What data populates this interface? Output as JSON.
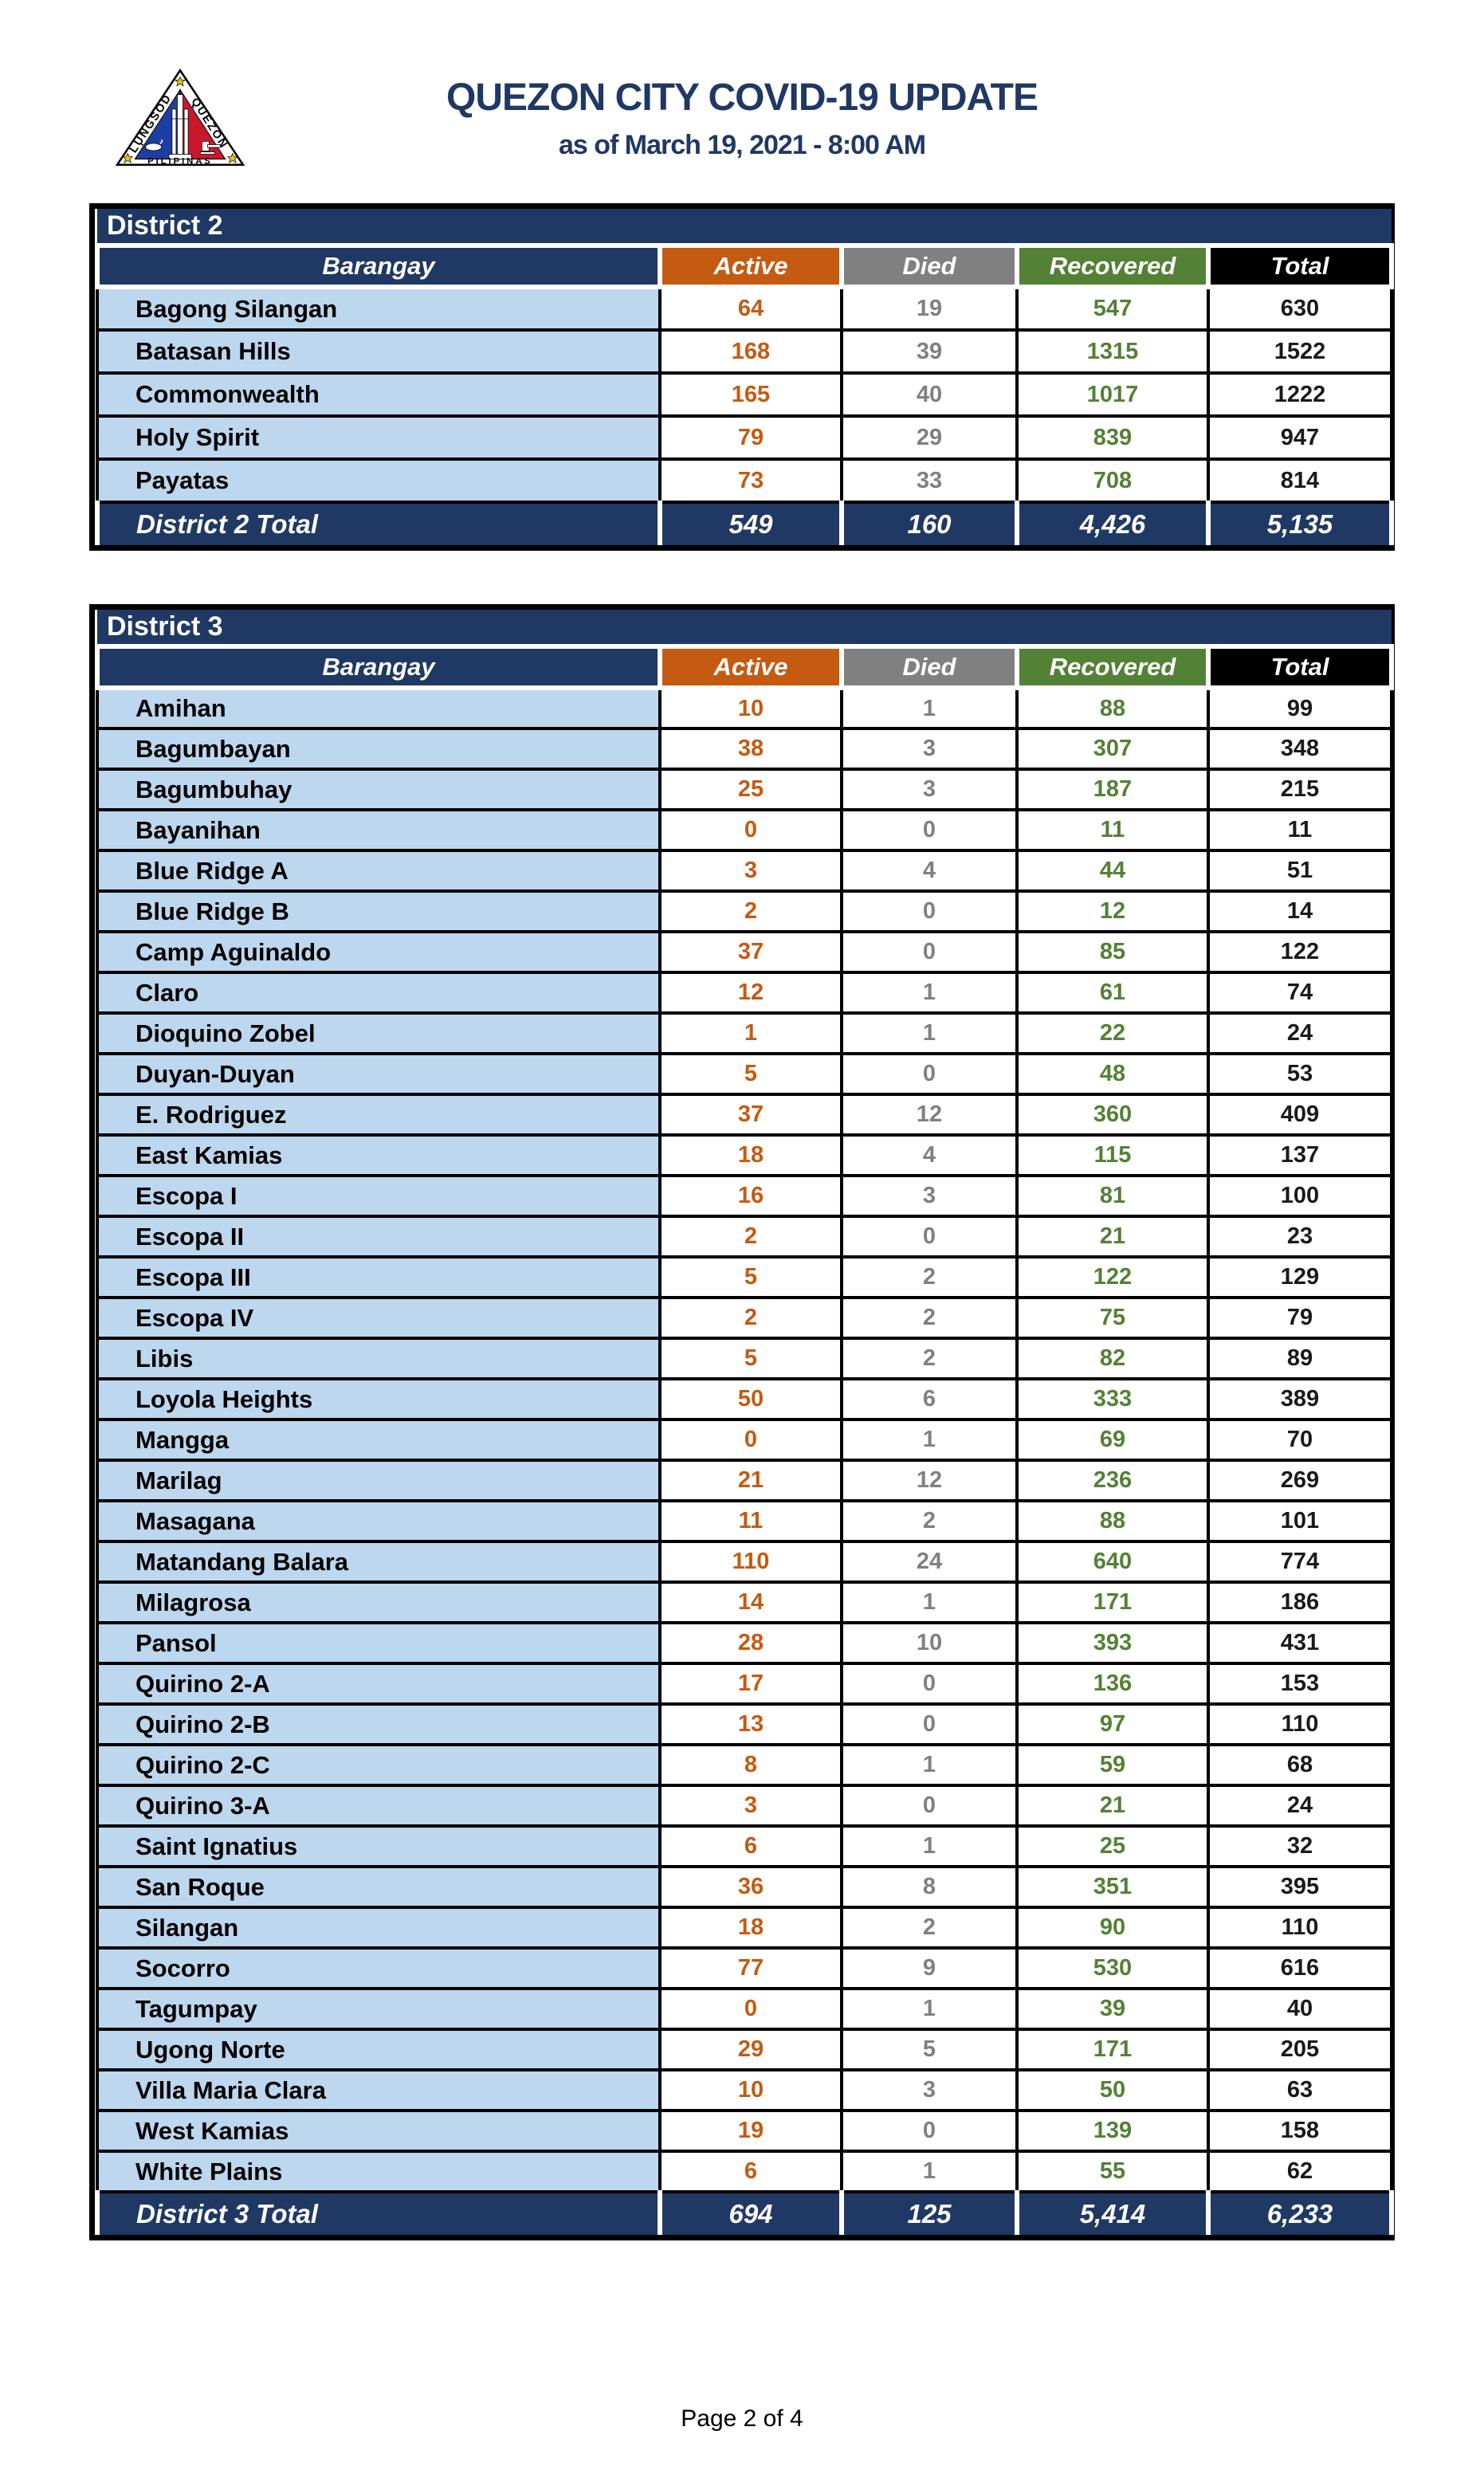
{
  "header": {
    "title": "QUEZON CITY COVID-19 UPDATE",
    "subtitle": "as of March 19, 2021 - 8:00 AM",
    "logo": {
      "name": "quezon-city-seal",
      "arc_left": "LUNGSOD",
      "arc_right": "QUEZON",
      "bottom": "PILIPINAS"
    }
  },
  "columns": {
    "barangay": "Barangay",
    "active": "Active",
    "died": "Died",
    "recovered": "Recovered",
    "total": "Total"
  },
  "colors": {
    "navy": "#1F3864",
    "active_orange": "#C55A11",
    "died_gray": "#808080",
    "recovered_green": "#538135",
    "total_black": "#000000",
    "row_light_blue": "#BDD7EE"
  },
  "tables": [
    {
      "district": "District 2",
      "total_label": "District 2 Total",
      "rows": [
        {
          "barangay": "Bagong Silangan",
          "active": "64",
          "died": "19",
          "recovered": "547",
          "total": "630"
        },
        {
          "barangay": "Batasan Hills",
          "active": "168",
          "died": "39",
          "recovered": "1315",
          "total": "1522"
        },
        {
          "barangay": "Commonwealth",
          "active": "165",
          "died": "40",
          "recovered": "1017",
          "total": "1222"
        },
        {
          "barangay": "Holy Spirit",
          "active": "79",
          "died": "29",
          "recovered": "839",
          "total": "947"
        },
        {
          "barangay": "Payatas",
          "active": "73",
          "died": "33",
          "recovered": "708",
          "total": "814"
        }
      ],
      "totals": {
        "active": "549",
        "died": "160",
        "recovered": "4,426",
        "total": "5,135"
      }
    },
    {
      "district": "District 3",
      "total_label": "District 3 Total",
      "rows": [
        {
          "barangay": "Amihan",
          "active": "10",
          "died": "1",
          "recovered": "88",
          "total": "99"
        },
        {
          "barangay": "Bagumbayan",
          "active": "38",
          "died": "3",
          "recovered": "307",
          "total": "348"
        },
        {
          "barangay": "Bagumbuhay",
          "active": "25",
          "died": "3",
          "recovered": "187",
          "total": "215"
        },
        {
          "barangay": "Bayanihan",
          "active": "0",
          "died": "0",
          "recovered": "11",
          "total": "11"
        },
        {
          "barangay": "Blue Ridge A",
          "active": "3",
          "died": "4",
          "recovered": "44",
          "total": "51"
        },
        {
          "barangay": "Blue Ridge B",
          "active": "2",
          "died": "0",
          "recovered": "12",
          "total": "14"
        },
        {
          "barangay": "Camp Aguinaldo",
          "active": "37",
          "died": "0",
          "recovered": "85",
          "total": "122"
        },
        {
          "barangay": "Claro",
          "active": "12",
          "died": "1",
          "recovered": "61",
          "total": "74"
        },
        {
          "barangay": "Dioquino Zobel",
          "active": "1",
          "died": "1",
          "recovered": "22",
          "total": "24"
        },
        {
          "barangay": "Duyan-Duyan",
          "active": "5",
          "died": "0",
          "recovered": "48",
          "total": "53"
        },
        {
          "barangay": "E. Rodriguez",
          "active": "37",
          "died": "12",
          "recovered": "360",
          "total": "409"
        },
        {
          "barangay": "East Kamias",
          "active": "18",
          "died": "4",
          "recovered": "115",
          "total": "137"
        },
        {
          "barangay": "Escopa I",
          "active": "16",
          "died": "3",
          "recovered": "81",
          "total": "100"
        },
        {
          "barangay": "Escopa II",
          "active": "2",
          "died": "0",
          "recovered": "21",
          "total": "23"
        },
        {
          "barangay": "Escopa III",
          "active": "5",
          "died": "2",
          "recovered": "122",
          "total": "129"
        },
        {
          "barangay": "Escopa IV",
          "active": "2",
          "died": "2",
          "recovered": "75",
          "total": "79"
        },
        {
          "barangay": "Libis",
          "active": "5",
          "died": "2",
          "recovered": "82",
          "total": "89"
        },
        {
          "barangay": "Loyola Heights",
          "active": "50",
          "died": "6",
          "recovered": "333",
          "total": "389"
        },
        {
          "barangay": "Mangga",
          "active": "0",
          "died": "1",
          "recovered": "69",
          "total": "70"
        },
        {
          "barangay": "Marilag",
          "active": "21",
          "died": "12",
          "recovered": "236",
          "total": "269"
        },
        {
          "barangay": "Masagana",
          "active": "11",
          "died": "2",
          "recovered": "88",
          "total": "101"
        },
        {
          "barangay": "Matandang Balara",
          "active": "110",
          "died": "24",
          "recovered": "640",
          "total": "774"
        },
        {
          "barangay": "Milagrosa",
          "active": "14",
          "died": "1",
          "recovered": "171",
          "total": "186"
        },
        {
          "barangay": "Pansol",
          "active": "28",
          "died": "10",
          "recovered": "393",
          "total": "431"
        },
        {
          "barangay": "Quirino 2-A",
          "active": "17",
          "died": "0",
          "recovered": "136",
          "total": "153"
        },
        {
          "barangay": "Quirino 2-B",
          "active": "13",
          "died": "0",
          "recovered": "97",
          "total": "110"
        },
        {
          "barangay": "Quirino 2-C",
          "active": "8",
          "died": "1",
          "recovered": "59",
          "total": "68"
        },
        {
          "barangay": "Quirino 3-A",
          "active": "3",
          "died": "0",
          "recovered": "21",
          "total": "24"
        },
        {
          "barangay": "Saint Ignatius",
          "active": "6",
          "died": "1",
          "recovered": "25",
          "total": "32"
        },
        {
          "barangay": "San Roque",
          "active": "36",
          "died": "8",
          "recovered": "351",
          "total": "395"
        },
        {
          "barangay": "Silangan",
          "active": "18",
          "died": "2",
          "recovered": "90",
          "total": "110"
        },
        {
          "barangay": "Socorro",
          "active": "77",
          "died": "9",
          "recovered": "530",
          "total": "616"
        },
        {
          "barangay": "Tagumpay",
          "active": "0",
          "died": "1",
          "recovered": "39",
          "total": "40"
        },
        {
          "barangay": "Ugong Norte",
          "active": "29",
          "died": "5",
          "recovered": "171",
          "total": "205"
        },
        {
          "barangay": "Villa Maria Clara",
          "active": "10",
          "died": "3",
          "recovered": "50",
          "total": "63"
        },
        {
          "barangay": "West Kamias",
          "active": "19",
          "died": "0",
          "recovered": "139",
          "total": "158"
        },
        {
          "barangay": "White Plains",
          "active": "6",
          "died": "1",
          "recovered": "55",
          "total": "62"
        }
      ],
      "totals": {
        "active": "694",
        "died": "125",
        "recovered": "5,414",
        "total": "6,233"
      }
    }
  ],
  "footer": {
    "page_label": "Page 2 of 4"
  }
}
